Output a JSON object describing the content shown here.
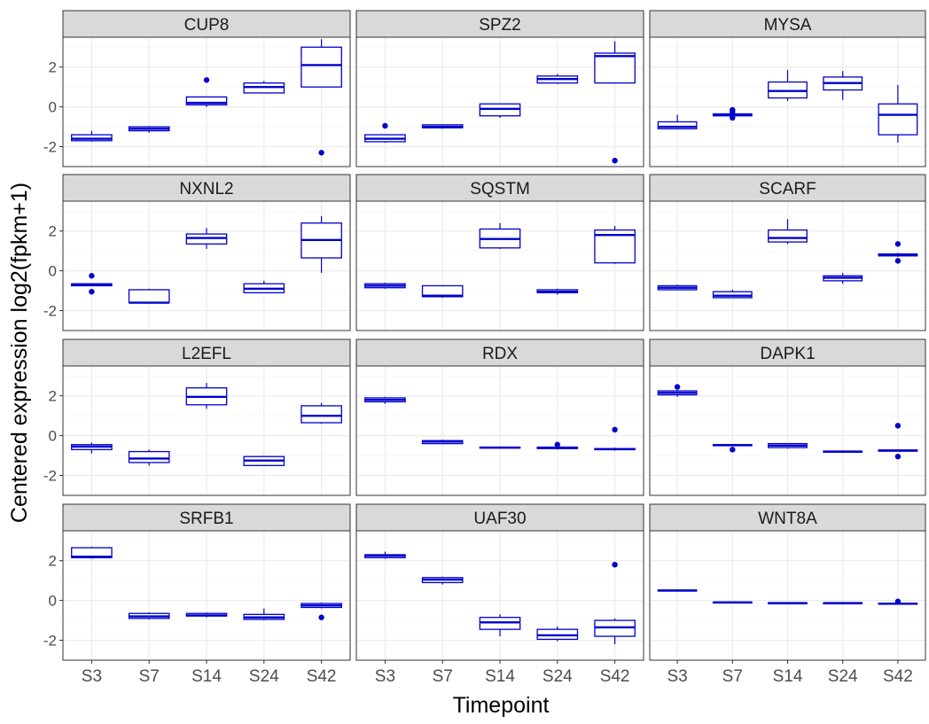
{
  "chart_data": {
    "type": "boxplot",
    "facet_layout": "4 rows x 3 columns",
    "xlabel": "Timepoint",
    "ylabel": "Centered expression log2(fpkm+1)",
    "categories": [
      "S3",
      "S7",
      "S14",
      "S24",
      "S42"
    ],
    "ylim": [
      -3,
      3.5
    ],
    "yticks": [
      -2,
      0,
      2
    ],
    "ytick_labels": [
      "-2",
      "0",
      "2"
    ],
    "grid": true,
    "colors": {
      "box": "#0000cc",
      "panel_background": "#ffffff",
      "strip_background": "#d9d9d9",
      "panel_border": "#333333",
      "grid_major": "#ebebeb"
    },
    "facets": [
      {
        "title": "CUP8",
        "boxes": [
          {
            "x": "S3",
            "lw": -1.75,
            "q1": -1.7,
            "med": -1.6,
            "q3": -1.4,
            "uw": -1.2,
            "out": []
          },
          {
            "x": "S7",
            "lw": -1.3,
            "q1": -1.2,
            "med": -1.1,
            "q3": -1.0,
            "uw": -0.95,
            "out": []
          },
          {
            "x": "S14",
            "lw": 0.0,
            "q1": 0.1,
            "med": 0.2,
            "q3": 0.5,
            "uw": 0.5,
            "out": [
              1.35
            ]
          },
          {
            "x": "S24",
            "lw": 0.7,
            "q1": 0.7,
            "med": 1.0,
            "q3": 1.2,
            "uw": 1.3,
            "out": []
          },
          {
            "x": "S42",
            "lw": 1.0,
            "q1": 1.0,
            "med": 2.1,
            "q3": 3.0,
            "uw": 3.4,
            "out": [
              -2.3
            ]
          }
        ]
      },
      {
        "title": "SPZ2",
        "boxes": [
          {
            "x": "S3",
            "lw": -1.8,
            "q1": -1.75,
            "med": -1.6,
            "q3": -1.4,
            "uw": -1.4,
            "out": [
              -0.95
            ]
          },
          {
            "x": "S7",
            "lw": -1.1,
            "q1": -1.05,
            "med": -1.0,
            "q3": -0.9,
            "uw": -0.9,
            "out": []
          },
          {
            "x": "S14",
            "lw": -0.55,
            "q1": -0.45,
            "med": -0.1,
            "q3": 0.15,
            "uw": 0.15,
            "out": []
          },
          {
            "x": "S24",
            "lw": 1.15,
            "q1": 1.2,
            "med": 1.4,
            "q3": 1.55,
            "uw": 1.65,
            "out": []
          },
          {
            "x": "S42",
            "lw": 1.2,
            "q1": 1.2,
            "med": 2.55,
            "q3": 2.7,
            "uw": 3.3,
            "out": [
              -2.7
            ]
          }
        ]
      },
      {
        "title": "MYSA",
        "boxes": [
          {
            "x": "S3",
            "lw": -1.1,
            "q1": -1.1,
            "med": -1.0,
            "q3": -0.75,
            "uw": -0.4,
            "out": []
          },
          {
            "x": "S7",
            "lw": -0.45,
            "q1": -0.45,
            "med": -0.4,
            "q3": -0.35,
            "uw": -0.35,
            "out": [
              -0.15,
              -0.25,
              -0.55
            ]
          },
          {
            "x": "S14",
            "lw": 0.3,
            "q1": 0.45,
            "med": 0.8,
            "q3": 1.25,
            "uw": 1.85,
            "out": []
          },
          {
            "x": "S24",
            "lw": 0.35,
            "q1": 0.85,
            "med": 1.2,
            "q3": 1.5,
            "uw": 1.8,
            "out": []
          },
          {
            "x": "S42",
            "lw": -1.8,
            "q1": -1.4,
            "med": -0.4,
            "q3": 0.15,
            "uw": 1.1,
            "out": []
          }
        ]
      },
      {
        "title": "NXNL2",
        "boxes": [
          {
            "x": "S3",
            "lw": -0.75,
            "q1": -0.75,
            "med": -0.7,
            "q3": -0.65,
            "uw": -0.65,
            "out": [
              -0.25,
              -1.05
            ]
          },
          {
            "x": "S7",
            "lw": -1.65,
            "q1": -1.6,
            "med": -1.6,
            "q3": -0.95,
            "uw": -0.9,
            "out": []
          },
          {
            "x": "S14",
            "lw": 1.1,
            "q1": 1.35,
            "med": 1.65,
            "q3": 1.85,
            "uw": 2.15,
            "out": []
          },
          {
            "x": "S24",
            "lw": -1.1,
            "q1": -1.1,
            "med": -0.9,
            "q3": -0.65,
            "uw": -0.5,
            "out": []
          },
          {
            "x": "S42",
            "lw": -0.1,
            "q1": 0.65,
            "med": 1.55,
            "q3": 2.4,
            "uw": 2.75,
            "out": []
          }
        ]
      },
      {
        "title": "SQSTM",
        "boxes": [
          {
            "x": "S3",
            "lw": -0.9,
            "q1": -0.85,
            "med": -0.75,
            "q3": -0.65,
            "uw": -0.6,
            "out": []
          },
          {
            "x": "S7",
            "lw": -1.35,
            "q1": -1.3,
            "med": -1.25,
            "q3": -0.75,
            "uw": -0.75,
            "out": []
          },
          {
            "x": "S14",
            "lw": 1.1,
            "q1": 1.15,
            "med": 1.6,
            "q3": 2.1,
            "uw": 2.4,
            "out": []
          },
          {
            "x": "S24",
            "lw": -1.2,
            "q1": -1.1,
            "med": -1.05,
            "q3": -0.95,
            "uw": -0.9,
            "out": []
          },
          {
            "x": "S42",
            "lw": 0.35,
            "q1": 0.4,
            "med": 1.8,
            "q3": 2.05,
            "uw": 2.25,
            "out": []
          }
        ]
      },
      {
        "title": "SCARF",
        "boxes": [
          {
            "x": "S3",
            "lw": -0.95,
            "q1": -0.95,
            "med": -0.85,
            "q3": -0.75,
            "uw": -0.7,
            "out": []
          },
          {
            "x": "S7",
            "lw": -1.35,
            "q1": -1.35,
            "med": -1.25,
            "q3": -1.05,
            "uw": -0.95,
            "out": []
          },
          {
            "x": "S14",
            "lw": 1.35,
            "q1": 1.45,
            "med": 1.65,
            "q3": 2.05,
            "uw": 2.6,
            "out": []
          },
          {
            "x": "S24",
            "lw": -0.65,
            "q1": -0.5,
            "med": -0.35,
            "q3": -0.25,
            "uw": -0.1,
            "out": []
          },
          {
            "x": "S42",
            "lw": 0.7,
            "q1": 0.75,
            "med": 0.8,
            "q3": 0.85,
            "uw": 0.9,
            "out": [
              1.35,
              0.5
            ]
          }
        ]
      },
      {
        "title": "L2EFL",
        "boxes": [
          {
            "x": "S3",
            "lw": -0.9,
            "q1": -0.7,
            "med": -0.55,
            "q3": -0.45,
            "uw": -0.35,
            "out": []
          },
          {
            "x": "S7",
            "lw": -1.5,
            "q1": -1.35,
            "med": -1.15,
            "q3": -0.8,
            "uw": -0.7,
            "out": []
          },
          {
            "x": "S14",
            "lw": 1.35,
            "q1": 1.55,
            "med": 1.95,
            "q3": 2.4,
            "uw": 2.65,
            "out": []
          },
          {
            "x": "S24",
            "lw": -1.5,
            "q1": -1.5,
            "med": -1.25,
            "q3": -1.05,
            "uw": -1.0,
            "out": []
          },
          {
            "x": "S42",
            "lw": 0.6,
            "q1": 0.65,
            "med": 1.0,
            "q3": 1.5,
            "uw": 1.65,
            "out": []
          }
        ]
      },
      {
        "title": "RDX",
        "boxes": [
          {
            "x": "S3",
            "lw": 1.6,
            "q1": 1.7,
            "med": 1.8,
            "q3": 1.9,
            "uw": 1.95,
            "out": []
          },
          {
            "x": "S7",
            "lw": -0.4,
            "q1": -0.4,
            "med": -0.3,
            "q3": -0.25,
            "uw": -0.2,
            "out": []
          },
          {
            "x": "S14",
            "lw": -0.65,
            "q1": -0.62,
            "med": -0.6,
            "q3": -0.58,
            "uw": -0.55,
            "out": []
          },
          {
            "x": "S24",
            "lw": -0.7,
            "q1": -0.65,
            "med": -0.6,
            "q3": -0.58,
            "uw": -0.55,
            "out": [
              -0.45
            ]
          },
          {
            "x": "S42",
            "lw": -0.75,
            "q1": -0.7,
            "med": -0.68,
            "q3": -0.65,
            "uw": -0.6,
            "out": [
              0.3
            ]
          }
        ]
      },
      {
        "title": "DAPK1",
        "boxes": [
          {
            "x": "S3",
            "lw": 1.95,
            "q1": 2.05,
            "med": 2.15,
            "q3": 2.25,
            "uw": 2.3,
            "out": [
              2.45
            ]
          },
          {
            "x": "S7",
            "lw": -0.5,
            "q1": -0.5,
            "med": -0.48,
            "q3": -0.45,
            "uw": -0.45,
            "out": [
              -0.7
            ]
          },
          {
            "x": "S14",
            "lw": -0.65,
            "q1": -0.6,
            "med": -0.5,
            "q3": -0.4,
            "uw": -0.4,
            "out": []
          },
          {
            "x": "S24",
            "lw": -0.85,
            "q1": -0.83,
            "med": -0.8,
            "q3": -0.78,
            "uw": -0.75,
            "out": []
          },
          {
            "x": "S42",
            "lw": -0.8,
            "q1": -0.78,
            "med": -0.75,
            "q3": -0.72,
            "uw": -0.7,
            "out": [
              0.5,
              -1.05
            ]
          }
        ]
      },
      {
        "title": "SRFB1",
        "boxes": [
          {
            "x": "S3",
            "lw": 2.1,
            "q1": 2.15,
            "med": 2.2,
            "q3": 2.65,
            "uw": 2.7,
            "out": []
          },
          {
            "x": "S7",
            "lw": -0.95,
            "q1": -0.9,
            "med": -0.8,
            "q3": -0.65,
            "uw": -0.6,
            "out": []
          },
          {
            "x": "S14",
            "lw": -0.85,
            "q1": -0.78,
            "med": -0.75,
            "q3": -0.65,
            "uw": -0.6,
            "out": []
          },
          {
            "x": "S24",
            "lw": -1.0,
            "q1": -0.95,
            "med": -0.85,
            "q3": -0.7,
            "uw": -0.4,
            "out": []
          },
          {
            "x": "S42",
            "lw": -0.4,
            "q1": -0.35,
            "med": -0.25,
            "q3": -0.15,
            "uw": -0.1,
            "out": [
              -0.85
            ]
          }
        ]
      },
      {
        "title": "UAF30",
        "boxes": [
          {
            "x": "S3",
            "lw": 2.1,
            "q1": 2.15,
            "med": 2.25,
            "q3": 2.3,
            "uw": 2.45,
            "out": []
          },
          {
            "x": "S7",
            "lw": 0.8,
            "q1": 0.9,
            "med": 1.05,
            "q3": 1.15,
            "uw": 1.2,
            "out": []
          },
          {
            "x": "S14",
            "lw": -1.8,
            "q1": -1.45,
            "med": -1.1,
            "q3": -0.85,
            "uw": -0.7,
            "out": []
          },
          {
            "x": "S24",
            "lw": -2.05,
            "q1": -1.95,
            "med": -1.75,
            "q3": -1.45,
            "uw": -1.3,
            "out": []
          },
          {
            "x": "S42",
            "lw": -2.2,
            "q1": -1.8,
            "med": -1.35,
            "q3": -1.0,
            "uw": -0.9,
            "out": [
              1.8
            ]
          }
        ]
      },
      {
        "title": "WNT8A",
        "boxes": [
          {
            "x": "S3",
            "lw": 0.5,
            "q1": 0.5,
            "med": 0.5,
            "q3": 0.52,
            "uw": 0.52,
            "out": []
          },
          {
            "x": "S7",
            "lw": -0.1,
            "q1": -0.1,
            "med": -0.1,
            "q3": -0.08,
            "uw": -0.08,
            "out": []
          },
          {
            "x": "S14",
            "lw": -0.14,
            "q1": -0.14,
            "med": -0.13,
            "q3": -0.12,
            "uw": -0.12,
            "out": []
          },
          {
            "x": "S24",
            "lw": -0.14,
            "q1": -0.14,
            "med": -0.13,
            "q3": -0.12,
            "uw": -0.12,
            "out": []
          },
          {
            "x": "S42",
            "lw": -0.18,
            "q1": -0.17,
            "med": -0.16,
            "q3": -0.14,
            "uw": -0.14,
            "out": [
              -0.05
            ]
          }
        ]
      }
    ]
  }
}
